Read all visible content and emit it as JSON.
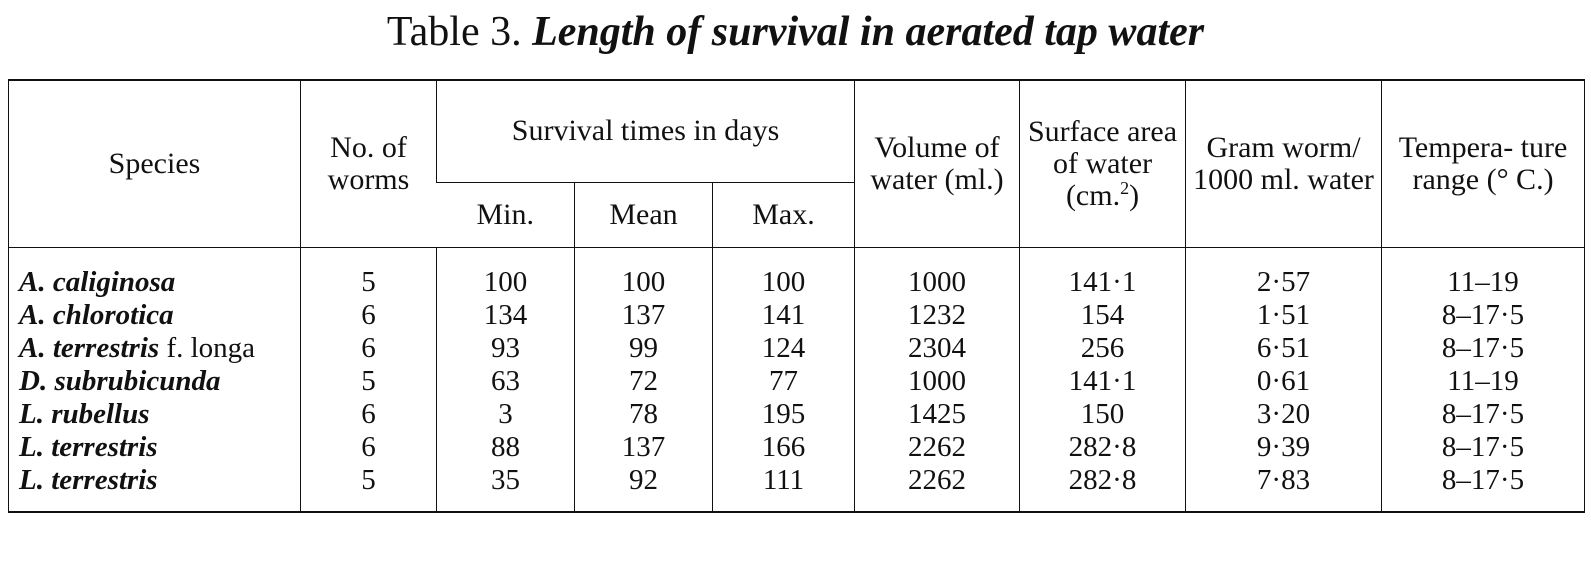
{
  "title": {
    "prefix": "Table 3.",
    "caption": "Length of survival in aerated tap water"
  },
  "headers": {
    "species": "Species",
    "no_of_worms": "No. of worms",
    "survival_group": "Survival times in days",
    "min": "Min.",
    "mean": "Mean",
    "max": "Max.",
    "volume": "Volume of water (ml.)",
    "surface_area": "Surface area of water (cm.",
    "surface_area_sup": "2",
    "surface_area_close": ")",
    "gram_worm": "Gram worm/ 1000 ml. water",
    "temperature": "Tempera- ture range (° C.)"
  },
  "rows": [
    {
      "genus": "A.",
      "species": "caliginosa",
      "suffix": "",
      "no": "5",
      "min": "100",
      "mean": "100",
      "max": "100",
      "volume": "1000",
      "surface": "141·1",
      "gram": "2·57",
      "temp": "11–19"
    },
    {
      "genus": "A.",
      "species": "chlorotica",
      "suffix": "",
      "no": "6",
      "min": "134",
      "mean": "137",
      "max": "141",
      "volume": "1232",
      "surface": "154",
      "gram": "1·51",
      "temp": "8–17·5"
    },
    {
      "genus": "A.",
      "species": "terrestris",
      "suffix": " f. longa",
      "no": "6",
      "min": "93",
      "mean": "99",
      "max": "124",
      "volume": "2304",
      "surface": "256",
      "gram": "6·51",
      "temp": "8–17·5"
    },
    {
      "genus": "D.",
      "species": "subrubicunda",
      "suffix": "",
      "no": "5",
      "min": "63",
      "mean": "72",
      "max": "77",
      "volume": "1000",
      "surface": "141·1",
      "gram": "0·61",
      "temp": "11–19"
    },
    {
      "genus": "L.",
      "species": "rubellus",
      "suffix": "",
      "no": "6",
      "min": "3",
      "mean": "78",
      "max": "195",
      "volume": "1425",
      "surface": "150",
      "gram": "3·20",
      "temp": "8–17·5"
    },
    {
      "genus": "L.",
      "species": "terrestris",
      "suffix": "",
      "no": "6",
      "min": "88",
      "mean": "137",
      "max": "166",
      "volume": "2262",
      "surface": "282·8",
      "gram": "9·39",
      "temp": "8–17·5"
    },
    {
      "genus": "L.",
      "species": "terrestris",
      "suffix": "",
      "no": "5",
      "min": "35",
      "mean": "92",
      "max": "111",
      "volume": "2262",
      "surface": "282·8",
      "gram": "7·83",
      "temp": "8–17·5"
    }
  ]
}
